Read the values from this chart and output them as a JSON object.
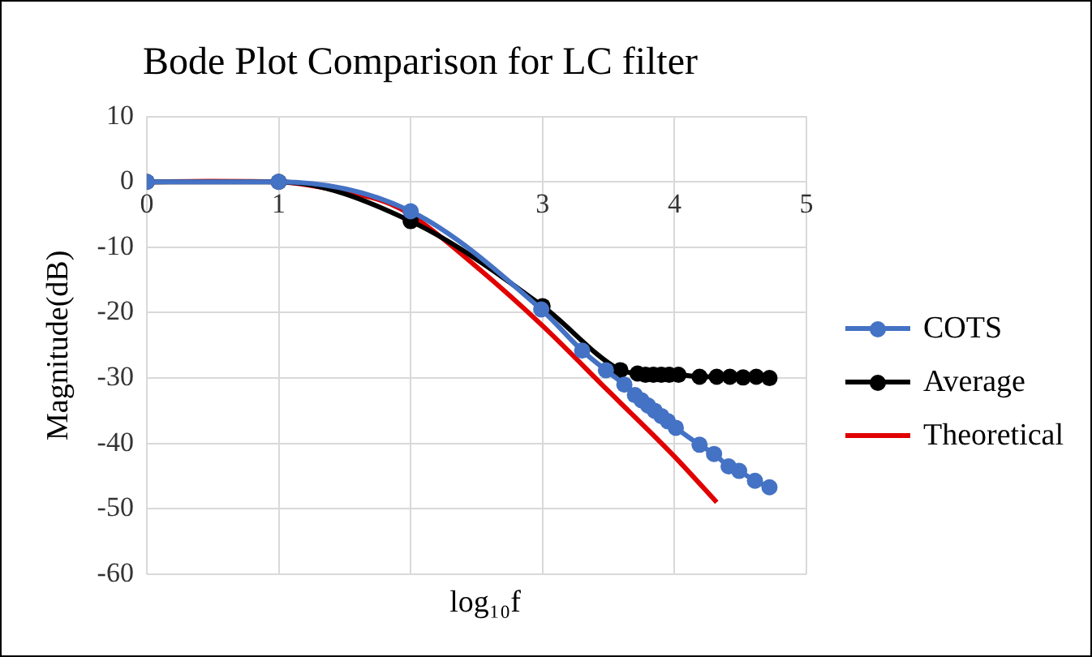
{
  "chart_data": {
    "type": "line",
    "title": "Bode Plot Comparison for LC filter",
    "xlabel": "log₁₀f",
    "ylabel": "Magnitude(dB)",
    "xlim": [
      0,
      5
    ],
    "xticks": [
      0,
      1,
      {
        "value": 2,
        "label": null
      },
      3,
      4,
      5
    ],
    "ylim": [
      -60,
      10
    ],
    "yticks": [
      -60,
      -50,
      -40,
      -30,
      -20,
      -10,
      0,
      10
    ],
    "grid": true,
    "legend": "right",
    "series": [
      {
        "name": "COTS",
        "color": "#4472c4",
        "marker": "circle",
        "x": [
          0,
          1,
          2,
          2.99,
          3.3,
          3.48,
          3.62,
          3.7,
          3.75,
          3.8,
          3.85,
          3.9,
          3.95,
          4.01,
          4.19,
          4.3,
          4.41,
          4.49,
          4.61,
          4.72
        ],
        "values": [
          0,
          0,
          -4.5,
          -19.5,
          -25.8,
          -28.8,
          -31,
          -32.6,
          -33.4,
          -34.2,
          -35,
          -35.8,
          -36.6,
          -37.6,
          -40.2,
          -41.6,
          -43.5,
          -44.2,
          -45.7,
          -46.7
        ]
      },
      {
        "name": "Average",
        "color": "#000000",
        "marker": "circle",
        "x": [
          0,
          1,
          2,
          3,
          3.59,
          3.72,
          3.78,
          3.84,
          3.9,
          3.96,
          4.03,
          4.19,
          4.32,
          4.42,
          4.52,
          4.62,
          4.72
        ],
        "values": [
          0,
          0,
          -6,
          -19,
          -28.8,
          -29.3,
          -29.5,
          -29.5,
          -29.5,
          -29.5,
          -29.5,
          -29.8,
          -29.8,
          -29.8,
          -29.9,
          -29.8,
          -30
        ]
      },
      {
        "name": "Theoretical",
        "color": "#e00000",
        "marker": "none",
        "x": [
          0,
          0.5,
          1,
          1.5,
          1.8,
          2,
          2.5,
          3,
          3.5,
          4,
          4.32
        ],
        "values": [
          0,
          0.1,
          0,
          -1.5,
          -3,
          -5,
          -13,
          -22,
          -32,
          -42,
          -49
        ]
      }
    ]
  }
}
